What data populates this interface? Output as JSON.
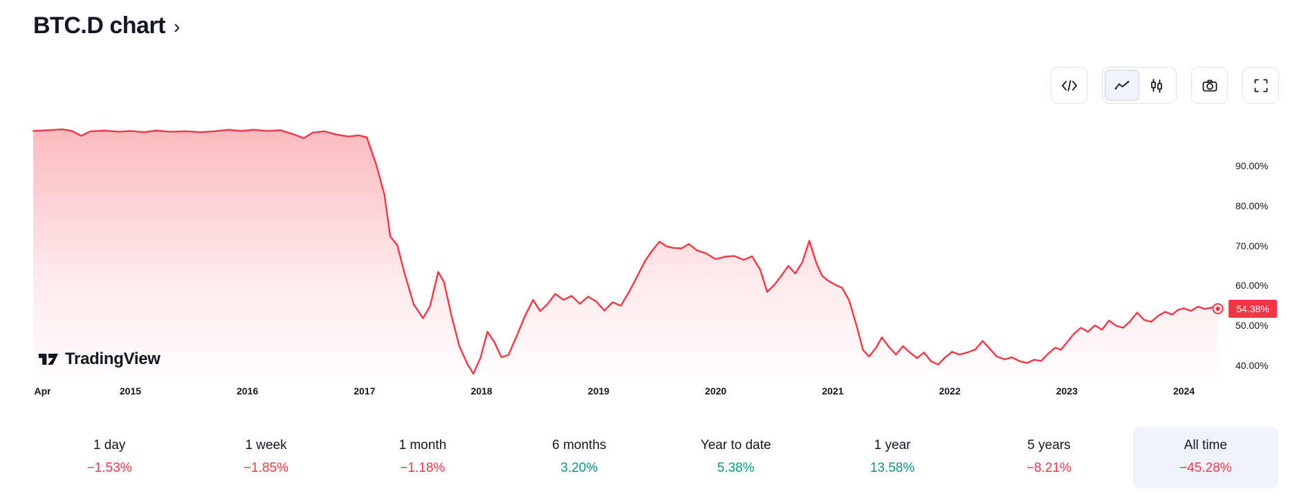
{
  "header": {
    "title": "BTC.D chart",
    "chevron": "›"
  },
  "toolbar": {
    "buttons": [
      {
        "name": "source-code",
        "icon": "code-icon"
      },
      {
        "name": "line-chart",
        "icon": "line-chart-icon",
        "active": true
      },
      {
        "name": "candlestick-chart",
        "icon": "candlestick-icon",
        "active": false
      },
      {
        "name": "snapshot",
        "icon": "camera-icon"
      },
      {
        "name": "fullscreen",
        "icon": "fullscreen-icon"
      }
    ]
  },
  "chart": {
    "watermark_text": "TradingView",
    "current_value_label": "54.38%",
    "colors": {
      "line": "#F23645",
      "badge": "#F23645",
      "positive": "#089981",
      "negative": "#F23645",
      "selected_bg": "#F0F3FA"
    }
  },
  "chart_data": {
    "type": "area",
    "title": "BTC.D (Bitcoin Dominance)",
    "xlim": [
      2014.17,
      2024.31
    ],
    "ylim": [
      36,
      101
    ],
    "grid": false,
    "legend": "none",
    "current_value": 54.38,
    "y_ticks": [
      {
        "label": "90.00%",
        "v": 90
      },
      {
        "label": "80.00%",
        "v": 80
      },
      {
        "label": "70.00%",
        "v": 70
      },
      {
        "label": "60.00%",
        "v": 60
      },
      {
        "label": "50.00%",
        "v": 50
      },
      {
        "label": "40.00%",
        "v": 40
      }
    ],
    "x_ticks": [
      {
        "label": "Apr",
        "t": 2014.25
      },
      {
        "label": "2015",
        "t": 2015
      },
      {
        "label": "2016",
        "t": 2016
      },
      {
        "label": "2017",
        "t": 2017
      },
      {
        "label": "2018",
        "t": 2018
      },
      {
        "label": "2019",
        "t": 2019
      },
      {
        "label": "2020",
        "t": 2020
      },
      {
        "label": "2021",
        "t": 2021
      },
      {
        "label": "2022",
        "t": 2022
      },
      {
        "label": "2023",
        "t": 2023
      },
      {
        "label": "2024",
        "t": 2024
      }
    ],
    "series": [
      {
        "name": "BTC.D",
        "points": [
          [
            2014.17,
            98.9
          ],
          [
            2014.3,
            99.1
          ],
          [
            2014.42,
            99.3
          ],
          [
            2014.5,
            98.9
          ],
          [
            2014.58,
            97.7
          ],
          [
            2014.66,
            98.8
          ],
          [
            2014.78,
            99.0
          ],
          [
            2014.9,
            98.7
          ],
          [
            2015.0,
            98.9
          ],
          [
            2015.12,
            98.6
          ],
          [
            2015.22,
            99.0
          ],
          [
            2015.34,
            98.7
          ],
          [
            2015.48,
            98.8
          ],
          [
            2015.6,
            98.6
          ],
          [
            2015.72,
            98.8
          ],
          [
            2015.84,
            99.2
          ],
          [
            2015.95,
            98.9
          ],
          [
            2016.05,
            99.2
          ],
          [
            2016.17,
            98.9
          ],
          [
            2016.28,
            99.1
          ],
          [
            2016.4,
            98.0
          ],
          [
            2016.48,
            97.1
          ],
          [
            2016.56,
            98.5
          ],
          [
            2016.66,
            98.8
          ],
          [
            2016.76,
            98.0
          ],
          [
            2016.86,
            97.5
          ],
          [
            2016.95,
            97.8
          ],
          [
            2017.02,
            97.3
          ],
          [
            2017.1,
            90.5
          ],
          [
            2017.17,
            83.0
          ],
          [
            2017.22,
            72.5
          ],
          [
            2017.28,
            70.3
          ],
          [
            2017.34,
            63.5
          ],
          [
            2017.42,
            55.5
          ],
          [
            2017.5,
            52.0
          ],
          [
            2017.56,
            55.0
          ],
          [
            2017.63,
            63.6
          ],
          [
            2017.68,
            61.0
          ],
          [
            2017.74,
            53.0
          ],
          [
            2017.81,
            45.0
          ],
          [
            2017.88,
            40.5
          ],
          [
            2017.93,
            38.1
          ],
          [
            2017.99,
            42.0
          ],
          [
            2018.05,
            48.6
          ],
          [
            2018.11,
            46.0
          ],
          [
            2018.17,
            42.2
          ],
          [
            2018.23,
            42.8
          ],
          [
            2018.3,
            47.5
          ],
          [
            2018.37,
            52.5
          ],
          [
            2018.44,
            56.6
          ],
          [
            2018.5,
            53.8
          ],
          [
            2018.56,
            55.4
          ],
          [
            2018.63,
            58.1
          ],
          [
            2018.7,
            56.6
          ],
          [
            2018.77,
            57.6
          ],
          [
            2018.84,
            55.6
          ],
          [
            2018.91,
            57.4
          ],
          [
            2018.98,
            56.2
          ],
          [
            2019.05,
            53.9
          ],
          [
            2019.12,
            56.0
          ],
          [
            2019.19,
            55.1
          ],
          [
            2019.26,
            58.6
          ],
          [
            2019.33,
            62.5
          ],
          [
            2019.4,
            66.5
          ],
          [
            2019.46,
            69.0
          ],
          [
            2019.52,
            71.2
          ],
          [
            2019.58,
            70.0
          ],
          [
            2019.64,
            69.6
          ],
          [
            2019.71,
            69.5
          ],
          [
            2019.77,
            70.6
          ],
          [
            2019.84,
            69.0
          ],
          [
            2019.92,
            68.2
          ],
          [
            2020.0,
            66.8
          ],
          [
            2020.08,
            67.4
          ],
          [
            2020.16,
            67.6
          ],
          [
            2020.24,
            66.6
          ],
          [
            2020.31,
            67.5
          ],
          [
            2020.38,
            64.2
          ],
          [
            2020.44,
            58.6
          ],
          [
            2020.5,
            60.3
          ],
          [
            2020.56,
            62.6
          ],
          [
            2020.62,
            65.1
          ],
          [
            2020.68,
            63.2
          ],
          [
            2020.74,
            66.0
          ],
          [
            2020.8,
            71.4
          ],
          [
            2020.86,
            65.8
          ],
          [
            2020.91,
            62.6
          ],
          [
            2020.96,
            61.4
          ],
          [
            2021.02,
            60.4
          ],
          [
            2021.08,
            59.6
          ],
          [
            2021.14,
            56.5
          ],
          [
            2021.2,
            50.5
          ],
          [
            2021.26,
            44.0
          ],
          [
            2021.31,
            42.4
          ],
          [
            2021.37,
            44.6
          ],
          [
            2021.42,
            47.2
          ],
          [
            2021.48,
            44.8
          ],
          [
            2021.54,
            42.9
          ],
          [
            2021.6,
            45.0
          ],
          [
            2021.66,
            43.4
          ],
          [
            2021.72,
            42.0
          ],
          [
            2021.78,
            43.4
          ],
          [
            2021.84,
            41.2
          ],
          [
            2021.9,
            40.4
          ],
          [
            2021.96,
            42.2
          ],
          [
            2022.02,
            43.6
          ],
          [
            2022.08,
            42.9
          ],
          [
            2022.15,
            43.4
          ],
          [
            2022.22,
            44.2
          ],
          [
            2022.28,
            46.3
          ],
          [
            2022.34,
            44.4
          ],
          [
            2022.4,
            42.4
          ],
          [
            2022.47,
            41.7
          ],
          [
            2022.53,
            42.2
          ],
          [
            2022.6,
            41.2
          ],
          [
            2022.66,
            40.8
          ],
          [
            2022.72,
            41.6
          ],
          [
            2022.78,
            41.3
          ],
          [
            2022.84,
            43.1
          ],
          [
            2022.9,
            44.6
          ],
          [
            2022.95,
            44.1
          ],
          [
            2023.0,
            45.9
          ],
          [
            2023.06,
            48.1
          ],
          [
            2023.12,
            49.6
          ],
          [
            2023.18,
            48.6
          ],
          [
            2023.24,
            50.2
          ],
          [
            2023.3,
            49.1
          ],
          [
            2023.36,
            51.4
          ],
          [
            2023.42,
            50.1
          ],
          [
            2023.48,
            49.6
          ],
          [
            2023.54,
            51.2
          ],
          [
            2023.6,
            53.4
          ],
          [
            2023.66,
            51.6
          ],
          [
            2023.72,
            51.1
          ],
          [
            2023.78,
            52.6
          ],
          [
            2023.84,
            53.6
          ],
          [
            2023.9,
            52.9
          ],
          [
            2023.95,
            54.1
          ],
          [
            2024.0,
            54.5
          ],
          [
            2024.06,
            53.8
          ],
          [
            2024.12,
            54.9
          ],
          [
            2024.18,
            54.3
          ],
          [
            2024.24,
            54.7
          ],
          [
            2024.29,
            54.38
          ]
        ]
      }
    ]
  },
  "periods": [
    {
      "label": "1 day",
      "value": "−1.53%",
      "direction": "down",
      "selected": false
    },
    {
      "label": "1 week",
      "value": "−1.85%",
      "direction": "down",
      "selected": false
    },
    {
      "label": "1 month",
      "value": "−1.18%",
      "direction": "down",
      "selected": false
    },
    {
      "label": "6 months",
      "value": "3.20%",
      "direction": "up",
      "selected": false
    },
    {
      "label": "Year to date",
      "value": "5.38%",
      "direction": "up",
      "selected": false
    },
    {
      "label": "1 year",
      "value": "13.58%",
      "direction": "up",
      "selected": false
    },
    {
      "label": "5 years",
      "value": "−8.21%",
      "direction": "down",
      "selected": false
    },
    {
      "label": "All time",
      "value": "−45.28%",
      "direction": "down",
      "selected": true
    }
  ]
}
